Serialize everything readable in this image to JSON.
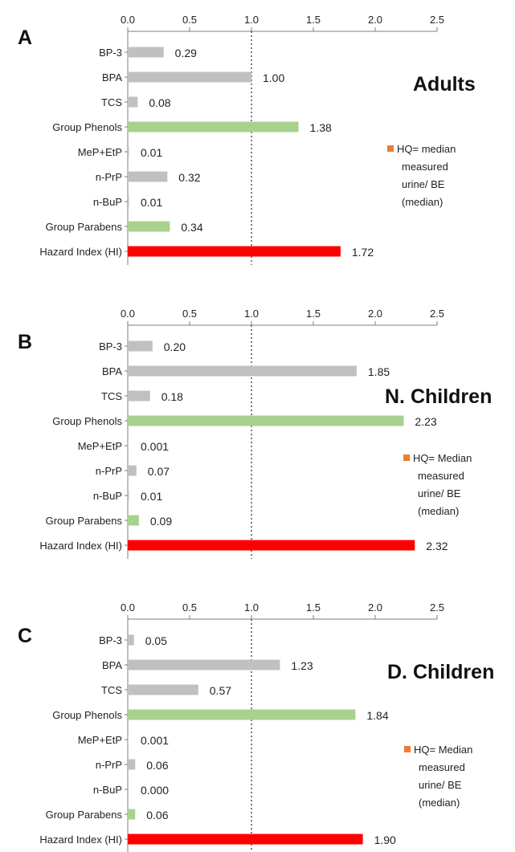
{
  "chart_data": [
    {
      "type": "bar",
      "orientation": "horizontal",
      "panel_label": "A",
      "title": "Adults",
      "categories": [
        "BP-3",
        "BPA",
        "TCS",
        "Group Phenols",
        "MeP+EtP",
        "n-PrP",
        "n-BuP",
        "Group Parabens",
        "Hazard Index (HI)"
      ],
      "values": [
        0.29,
        1.0,
        0.08,
        1.38,
        0.01,
        0.32,
        0.01,
        0.34,
        1.72
      ],
      "value_labels": [
        "0.29",
        "1.00",
        "0.08",
        "1.38",
        "0.01",
        "0.32",
        "0.01",
        "0.34",
        "1.72"
      ],
      "bar_colors": [
        "#c0c0c0",
        "#c0c0c0",
        "#c0c0c0",
        "#a9d18e",
        "#c0c0c0",
        "#c0c0c0",
        "#c0c0c0",
        "#a9d18e",
        "#ff0000"
      ],
      "xlim": [
        0,
        2.5
      ],
      "x_ticks": [
        "0.0",
        "0.5",
        "1.0",
        "1.5",
        "2.0",
        "2.5"
      ],
      "x_axis_position": "top",
      "reference_line": {
        "x": 1.0,
        "style": "dotted"
      },
      "note_lines": [
        "HQ= median",
        "measured",
        "urine/ BE",
        "(median)"
      ],
      "note_marker_color": "#ed7d31"
    },
    {
      "type": "bar",
      "orientation": "horizontal",
      "panel_label": "B",
      "title": "N. Children",
      "categories": [
        "BP-3",
        "BPA",
        "TCS",
        "Group Phenols",
        "MeP+EtP",
        "n-PrP",
        "n-BuP",
        "Group Parabens",
        "Hazard Index (HI)"
      ],
      "values": [
        0.2,
        1.85,
        0.18,
        2.23,
        0.001,
        0.07,
        0.01,
        0.09,
        2.32
      ],
      "value_labels": [
        "0.20",
        "1.85",
        "0.18",
        "2.23",
        "0.001",
        "0.07",
        "0.01",
        "0.09",
        "2.32"
      ],
      "bar_colors": [
        "#c0c0c0",
        "#c0c0c0",
        "#c0c0c0",
        "#a9d18e",
        "#c0c0c0",
        "#c0c0c0",
        "#c0c0c0",
        "#a9d18e",
        "#ff0000"
      ],
      "xlim": [
        0,
        2.5
      ],
      "x_ticks": [
        "0.0",
        "0.5",
        "1.0",
        "1.5",
        "2.0",
        "2.5"
      ],
      "x_axis_position": "top",
      "reference_line": {
        "x": 1.0,
        "style": "dotted"
      },
      "note_lines": [
        "HQ= Median",
        "measured",
        "urine/ BE",
        "(median)"
      ],
      "note_marker_color": "#ed7d31"
    },
    {
      "type": "bar",
      "orientation": "horizontal",
      "panel_label": "C",
      "title": "D. Children",
      "categories": [
        "BP-3",
        "BPA",
        "TCS",
        "Group Phenols",
        "MeP+EtP",
        "n-PrP",
        "n-BuP",
        "Group Parabens",
        "Hazard Index (HI)"
      ],
      "values": [
        0.05,
        1.23,
        0.57,
        1.84,
        0.001,
        0.06,
        0.0,
        0.06,
        1.9
      ],
      "value_labels": [
        "0.05",
        "1.23",
        "0.57",
        "1.84",
        "0.001",
        "0.06",
        "0.000",
        "0.06",
        "1.90"
      ],
      "bar_colors": [
        "#c0c0c0",
        "#c0c0c0",
        "#c0c0c0",
        "#a9d18e",
        "#c0c0c0",
        "#c0c0c0",
        "#c0c0c0",
        "#a9d18e",
        "#ff0000"
      ],
      "xlim": [
        0,
        2.5
      ],
      "x_ticks": [
        "0.0",
        "0.5",
        "1.0",
        "1.5",
        "2.0",
        "2.5"
      ],
      "x_axis_position": "top",
      "reference_line": {
        "x": 1.0,
        "style": "dotted"
      },
      "note_lines": [
        "HQ= Median",
        "measured",
        "urine/ BE",
        "(median)"
      ],
      "note_marker_color": "#ed7d31"
    }
  ]
}
